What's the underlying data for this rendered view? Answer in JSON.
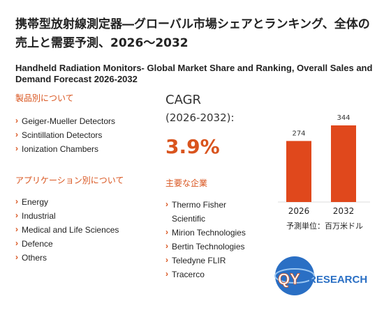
{
  "header": {
    "title": "携帯型放射線測定器―グローバル市場シェアとランキング、全体の売上と需要予測、2026～2032",
    "subtitle": "Handheld Radiation Monitors- Global Market Share and Ranking, Overall Sales and Demand Forecast 2026-2032"
  },
  "product_section": {
    "heading": "製品別について",
    "items": [
      "Geiger-Mueller Detectors",
      "Scintillation Detectors",
      "Ionization Chambers"
    ]
  },
  "application_section": {
    "heading": "アプリケーション別について",
    "items": [
      "Energy",
      "Industrial",
      "Medical and Life Sciences",
      "Defence",
      "Others"
    ]
  },
  "cagr": {
    "label": "CAGR",
    "period": "(2026-2032):",
    "value": "3.9%"
  },
  "companies_section": {
    "heading": "主要な企業",
    "items": [
      "Thermo Fisher Scientific",
      "Mirion Technologies",
      "Bertin Technologies",
      "Teledyne FLIR",
      "Tracerco"
    ]
  },
  "chart_data": {
    "type": "bar",
    "categories": [
      "2026",
      "2032"
    ],
    "values": [
      274,
      344
    ],
    "color": "#e0481c",
    "unit_note": "予測単位：百万米ドル"
  },
  "logo": {
    "part1": "QY",
    "part2": "RESEARCH"
  }
}
